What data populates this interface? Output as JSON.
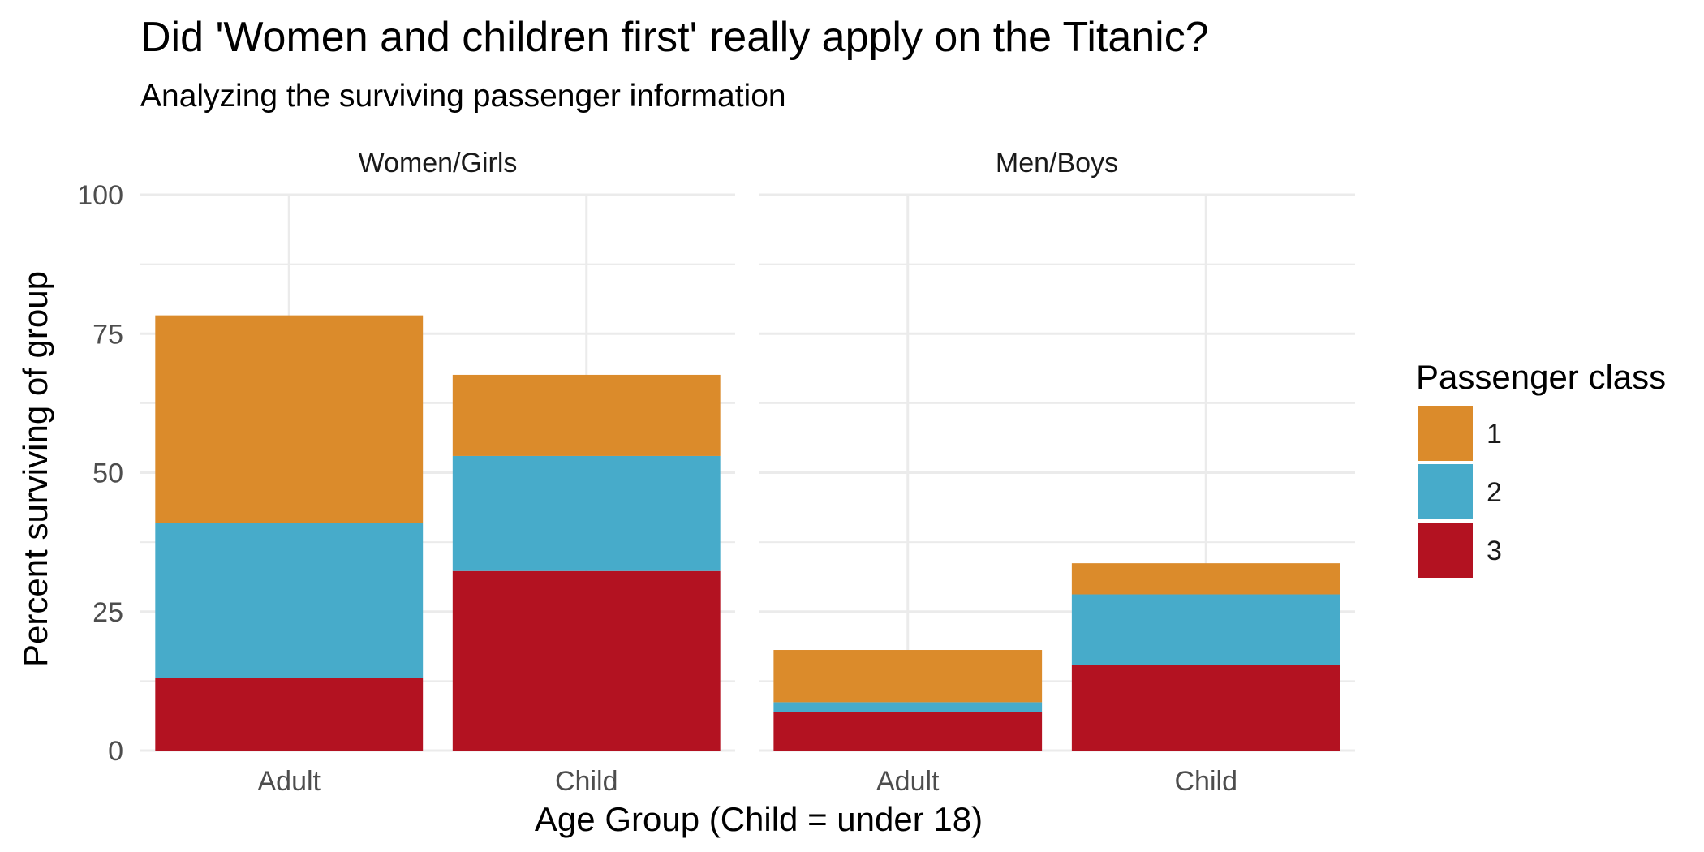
{
  "chart_data": {
    "type": "bar",
    "stacked": true,
    "title": "Did 'Women and children first' really apply on the Titanic?",
    "subtitle": "Analyzing the surviving passenger information",
    "xlabel": "Age Group (Child = under 18)",
    "ylabel": "Percent surviving of group",
    "ylim": [
      0,
      100
    ],
    "yticks": [
      0,
      25,
      50,
      75,
      100
    ],
    "grid": true,
    "legend": {
      "title": "Passenger class",
      "position": "right",
      "entries": [
        {
          "label": "1",
          "color": "#DB8B2B"
        },
        {
          "label": "2",
          "color": "#47ABCA"
        },
        {
          "label": "3",
          "color": "#B31221"
        }
      ]
    },
    "categories": [
      "Adult",
      "Child"
    ],
    "panels": [
      {
        "label": "Women/Girls",
        "series": [
          {
            "name": "3",
            "values": [
              13.0,
              32.3
            ]
          },
          {
            "name": "2",
            "values": [
              27.9,
              20.7
            ]
          },
          {
            "name": "1",
            "values": [
              37.4,
              14.6
            ]
          }
        ]
      },
      {
        "label": "Men/Boys",
        "series": [
          {
            "name": "3",
            "values": [
              7.0,
              15.4
            ]
          },
          {
            "name": "2",
            "values": [
              1.7,
              12.7
            ]
          },
          {
            "name": "1",
            "values": [
              9.4,
              5.6
            ]
          }
        ]
      }
    ]
  }
}
